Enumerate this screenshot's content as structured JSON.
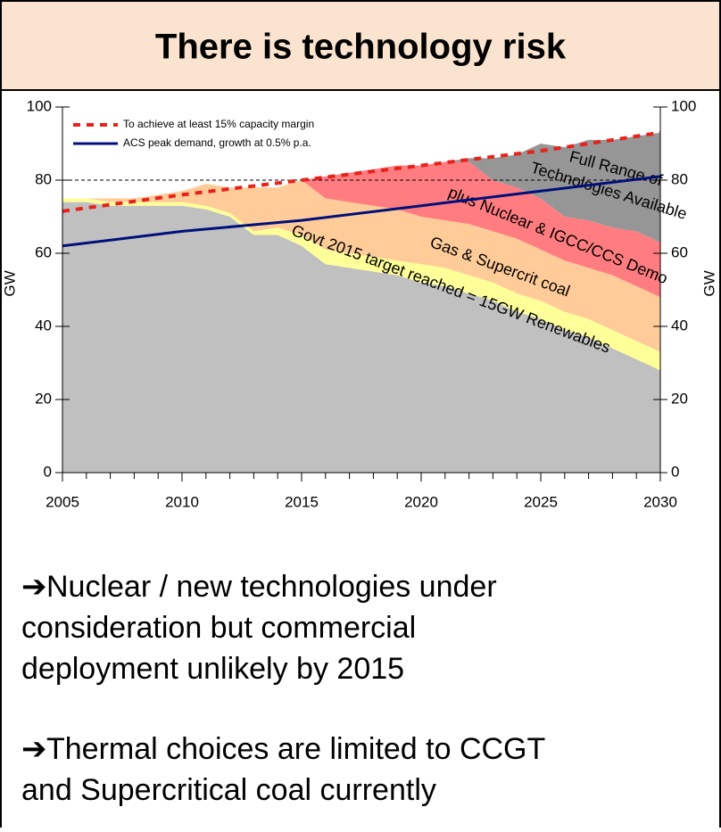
{
  "header": {
    "title": "There is technology risk"
  },
  "chart_data": {
    "type": "stacked-area",
    "x": [
      2005,
      2006,
      2007,
      2008,
      2009,
      2010,
      2011,
      2012,
      2013,
      2014,
      2015,
      2016,
      2017,
      2018,
      2019,
      2020,
      2021,
      2022,
      2023,
      2024,
      2025,
      2026,
      2027,
      2028,
      2029,
      2030
    ],
    "series": [
      {
        "color": "#c0c0c0",
        "values": [
          74,
          74,
          73,
          73,
          73,
          73,
          72,
          70,
          65,
          65,
          62,
          57,
          56,
          55,
          54,
          52,
          51,
          49,
          47,
          44,
          42,
          39,
          37,
          34,
          31,
          28
        ]
      },
      {
        "color": "#ffff99",
        "values": [
          1,
          1,
          1,
          1,
          1,
          1,
          1,
          1,
          1,
          2,
          3,
          4,
          4,
          4,
          4,
          5,
          5,
          5,
          5,
          5,
          5,
          5,
          5,
          5,
          5,
          5
        ]
      },
      {
        "color": "#ffcc99",
        "values": [
          0,
          0,
          1,
          1,
          2,
          3,
          6,
          7,
          12,
          11,
          15,
          14,
          14,
          14,
          14,
          13,
          13,
          14,
          14,
          15,
          14,
          14,
          14,
          15,
          15,
          15
        ]
      },
      {
        "color": "#ff7c80",
        "values": [
          0,
          0,
          0,
          0,
          0,
          0,
          0,
          0,
          0,
          0,
          0,
          6,
          8,
          10,
          12,
          14,
          16,
          17,
          14,
          14,
          14,
          12,
          13,
          13,
          15,
          15
        ]
      },
      {
        "color": "#969696",
        "values": [
          0,
          0,
          0,
          0,
          0,
          0,
          0,
          0,
          0,
          0,
          0,
          0,
          0,
          0,
          0,
          0,
          0,
          1,
          6,
          9,
          15,
          19,
          22,
          24,
          26,
          30
        ]
      }
    ],
    "lines": [
      {
        "name": "To achieve at least 15% capacity margin",
        "color": "#e8221b",
        "dashed": true,
        "x": [
          2005,
          2010,
          2015,
          2020,
          2025,
          2030
        ],
        "values": [
          71.5,
          76,
          80,
          84,
          88,
          93
        ]
      },
      {
        "name": "ACS peak demand, growth at 0.5% p.a.",
        "color": "#00107a",
        "dashed": false,
        "x": [
          2005,
          2010,
          2015,
          2020,
          2025,
          2030
        ],
        "values": [
          62,
          66,
          69,
          73,
          77,
          81
        ]
      }
    ],
    "reference_line": 80,
    "annotations": [
      "Full Range of",
      "Technologies Available",
      "plus Nuclear & IGCC/CCS Demo",
      "Gas & Supercrit coal",
      "Govt 2015 target reached = 15GW Renewables"
    ],
    "xlim": [
      2005,
      2030
    ],
    "xticks": [
      2005,
      2010,
      2015,
      2020,
      2025,
      2030
    ],
    "ylim": [
      0,
      100
    ],
    "yticks": [
      0,
      20,
      40,
      60,
      80,
      100
    ],
    "y_label": "GW",
    "legend": "upper left"
  },
  "bullets": [
    [
      "Nuclear / new technologies under",
      "consideration but commercial",
      "deployment unlikely by 2015"
    ],
    [
      "Thermal choices are limited to CCGT",
      "and Supercritical coal currently"
    ]
  ]
}
